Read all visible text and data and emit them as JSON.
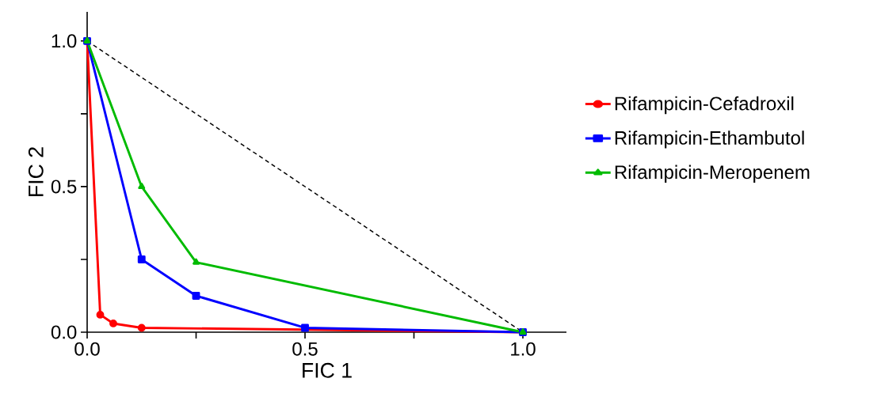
{
  "chart_data": {
    "type": "line",
    "xlabel": "FIC 1",
    "ylabel": "FIC 2",
    "xlim": [
      0,
      1.1
    ],
    "ylim": [
      0,
      1.1
    ],
    "xticks": [
      {
        "value": 0.0,
        "label": "0.0"
      },
      {
        "value": 0.25,
        "label": null
      },
      {
        "value": 0.5,
        "label": "0.5"
      },
      {
        "value": 0.75,
        "label": null
      },
      {
        "value": 1.0,
        "label": "1.0"
      }
    ],
    "yticks": [
      {
        "value": 0.0,
        "label": "0.0"
      },
      {
        "value": 0.25,
        "label": null
      },
      {
        "value": 0.5,
        "label": "0.5"
      },
      {
        "value": 0.75,
        "label": null
      },
      {
        "value": 1.0,
        "label": "1.0"
      }
    ],
    "legend": "right",
    "series": [
      {
        "name": "Rifampicin-Cefadroxil",
        "color": "#ff0000",
        "marker": "circle",
        "x": [
          0,
          0.03,
          0.06,
          0.125,
          1
        ],
        "values": [
          1,
          0.06,
          0.03,
          0.015,
          0
        ]
      },
      {
        "name": "Rifampicin-Ethambutol",
        "color": "#0000ff",
        "marker": "square",
        "x": [
          0,
          0.125,
          0.25,
          0.5,
          1
        ],
        "values": [
          1,
          0.25,
          0.125,
          0.015,
          0
        ]
      },
      {
        "name": "Rifampicin-Meropenem",
        "color": "#00bb00",
        "marker": "triangle",
        "x": [
          0,
          0.125,
          0.25,
          1
        ],
        "values": [
          1,
          0.5,
          0.24,
          0
        ]
      },
      {
        "color": "#000000",
        "marker": "none",
        "line_style": "dashed",
        "x": [
          0,
          1
        ],
        "values": [
          1,
          0
        ]
      }
    ]
  }
}
